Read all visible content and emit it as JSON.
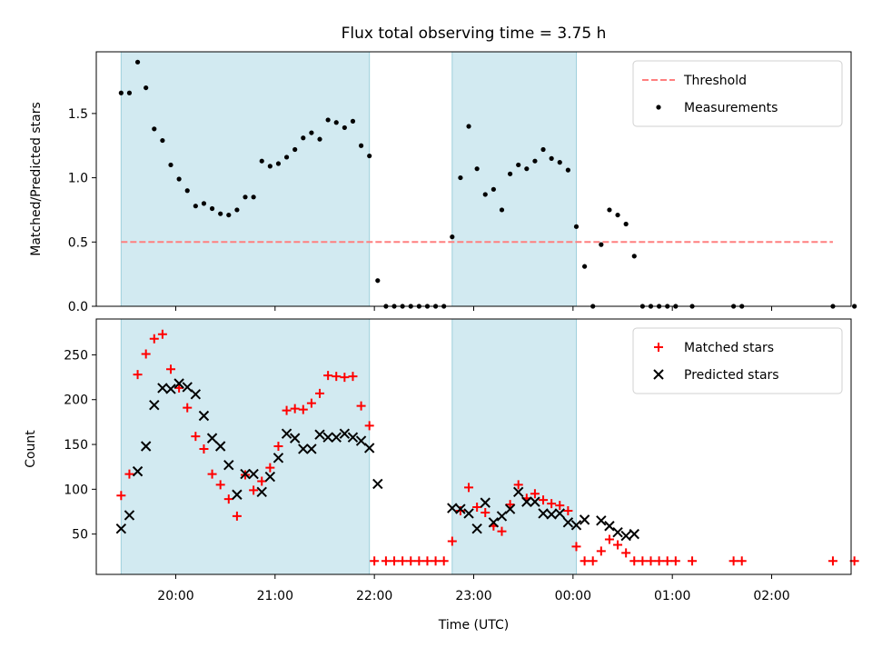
{
  "chart_data": [
    {
      "type": "scatter",
      "title": "Flux total observing time = 3.75 h",
      "xlabel": "",
      "ylabel": "Matched/Predicted stars",
      "xlim": [
        "19:12",
        "02:48"
      ],
      "ylim": [
        0,
        1.98
      ],
      "yticks": [
        0.0,
        0.5,
        1.0,
        1.5
      ],
      "ytick_labels": [
        "0.0",
        "0.5",
        "1.0",
        "1.5"
      ],
      "shaded_intervals": [
        [
          "19:27",
          "21:57"
        ],
        [
          "22:47",
          "00:02"
        ]
      ],
      "shade_color": "#add8e6",
      "legend_position": "top-right",
      "threshold": {
        "name": "Threshold",
        "value": 0.5,
        "x_range": [
          "19:27",
          "02:37"
        ],
        "color": "#ff7f7f"
      },
      "series": [
        {
          "name": "Measurements",
          "color": "#000000",
          "marker": "dot",
          "points": [
            [
              "19:27",
              1.66
            ],
            [
              "19:32",
              1.66
            ],
            [
              "19:37",
              1.9
            ],
            [
              "19:42",
              1.7
            ],
            [
              "19:47",
              1.38
            ],
            [
              "19:52",
              1.29
            ],
            [
              "19:57",
              1.1
            ],
            [
              "20:02",
              0.99
            ],
            [
              "20:07",
              0.9
            ],
            [
              "20:12",
              0.78
            ],
            [
              "20:17",
              0.8
            ],
            [
              "20:22",
              0.76
            ],
            [
              "20:27",
              0.72
            ],
            [
              "20:32",
              0.71
            ],
            [
              "20:37",
              0.75
            ],
            [
              "20:42",
              0.85
            ],
            [
              "20:47",
              0.85
            ],
            [
              "20:52",
              1.13
            ],
            [
              "20:57",
              1.09
            ],
            [
              "21:02",
              1.11
            ],
            [
              "21:07",
              1.16
            ],
            [
              "21:12",
              1.22
            ],
            [
              "21:17",
              1.31
            ],
            [
              "21:22",
              1.35
            ],
            [
              "21:27",
              1.3
            ],
            [
              "21:32",
              1.45
            ],
            [
              "21:37",
              1.43
            ],
            [
              "21:42",
              1.39
            ],
            [
              "21:47",
              1.44
            ],
            [
              "21:52",
              1.25
            ],
            [
              "21:57",
              1.17
            ],
            [
              "22:02",
              0.2
            ],
            [
              "22:07",
              0.0
            ],
            [
              "22:12",
              0.0
            ],
            [
              "22:17",
              0.0
            ],
            [
              "22:22",
              0.0
            ],
            [
              "22:27",
              0.0
            ],
            [
              "22:32",
              0.0
            ],
            [
              "22:37",
              0.0
            ],
            [
              "22:42",
              0.0
            ],
            [
              "22:47",
              0.54
            ],
            [
              "22:52",
              1.0
            ],
            [
              "22:57",
              1.4
            ],
            [
              "23:02",
              1.07
            ],
            [
              "23:07",
              0.87
            ],
            [
              "23:12",
              0.91
            ],
            [
              "23:17",
              0.75
            ],
            [
              "23:22",
              1.03
            ],
            [
              "23:27",
              1.1
            ],
            [
              "23:32",
              1.07
            ],
            [
              "23:37",
              1.13
            ],
            [
              "23:42",
              1.22
            ],
            [
              "23:47",
              1.15
            ],
            [
              "23:52",
              1.12
            ],
            [
              "23:57",
              1.06
            ],
            [
              "00:02",
              0.62
            ],
            [
              "00:07",
              0.31
            ],
            [
              "00:12",
              0.0
            ],
            [
              "00:17",
              0.48
            ],
            [
              "00:22",
              0.75
            ],
            [
              "00:27",
              0.71
            ],
            [
              "00:32",
              0.64
            ],
            [
              "00:37",
              0.39
            ],
            [
              "00:42",
              0.0
            ],
            [
              "00:47",
              0.0
            ],
            [
              "00:52",
              0.0
            ],
            [
              "00:57",
              0.0
            ],
            [
              "01:02",
              0.0
            ],
            [
              "01:12",
              0.0
            ],
            [
              "01:37",
              0.0
            ],
            [
              "01:42",
              0.0
            ],
            [
              "02:37",
              0.0
            ],
            [
              "02:50",
              0.0
            ]
          ]
        }
      ]
    },
    {
      "type": "scatter",
      "title": "",
      "xlabel": "Time (UTC)",
      "ylabel": "Count",
      "xlim": [
        "19:12",
        "02:48"
      ],
      "ylim": [
        5,
        290
      ],
      "xticks": [
        "20:00",
        "21:00",
        "22:00",
        "23:00",
        "00:00",
        "01:00",
        "02:00"
      ],
      "yticks": [
        50,
        100,
        150,
        200,
        250
      ],
      "ytick_labels": [
        "50",
        "100",
        "150",
        "200",
        "250"
      ],
      "shaded_intervals": [
        [
          "19:27",
          "21:57"
        ],
        [
          "22:47",
          "00:02"
        ]
      ],
      "shade_color": "#add8e6",
      "legend_position": "top-right",
      "series": [
        {
          "name": "Matched stars",
          "color": "#ff0000",
          "marker": "plus",
          "points": [
            [
              "19:27",
              93
            ],
            [
              "19:32",
              117
            ],
            [
              "19:37",
              228
            ],
            [
              "19:42",
              251
            ],
            [
              "19:47",
              268
            ],
            [
              "19:52",
              273
            ],
            [
              "19:57",
              234
            ],
            [
              "20:02",
              213
            ],
            [
              "20:07",
              191
            ],
            [
              "20:12",
              159
            ],
            [
              "20:17",
              145
            ],
            [
              "20:22",
              117
            ],
            [
              "20:27",
              105
            ],
            [
              "20:32",
              89
            ],
            [
              "20:37",
              70
            ],
            [
              "20:42",
              116
            ],
            [
              "20:47",
              99
            ],
            [
              "20:52",
              109
            ],
            [
              "20:57",
              124
            ],
            [
              "21:02",
              148
            ],
            [
              "21:07",
              188
            ],
            [
              "21:12",
              190
            ],
            [
              "21:17",
              189
            ],
            [
              "21:22",
              196
            ],
            [
              "21:27",
              207
            ],
            [
              "21:32",
              227
            ],
            [
              "21:37",
              226
            ],
            [
              "21:42",
              225
            ],
            [
              "21:47",
              226
            ],
            [
              "21:52",
              193
            ],
            [
              "21:57",
              171
            ],
            [
              "22:00",
              20
            ],
            [
              "22:07",
              20
            ],
            [
              "22:12",
              20
            ],
            [
              "22:17",
              20
            ],
            [
              "22:22",
              20
            ],
            [
              "22:27",
              20
            ],
            [
              "22:32",
              20
            ],
            [
              "22:37",
              20
            ],
            [
              "22:42",
              20
            ],
            [
              "22:47",
              42
            ],
            [
              "22:52",
              76
            ],
            [
              "22:57",
              102
            ],
            [
              "23:02",
              80
            ],
            [
              "23:07",
              74
            ],
            [
              "23:12",
              59
            ],
            [
              "23:17",
              53
            ],
            [
              "23:22",
              83
            ],
            [
              "23:27",
              105
            ],
            [
              "23:32",
              90
            ],
            [
              "23:37",
              95
            ],
            [
              "23:42",
              88
            ],
            [
              "23:47",
              84
            ],
            [
              "23:52",
              82
            ],
            [
              "23:57",
              76
            ],
            [
              "00:02",
              36
            ],
            [
              "00:07",
              20
            ],
            [
              "00:12",
              20
            ],
            [
              "00:17",
              31
            ],
            [
              "00:22",
              44
            ],
            [
              "00:27",
              38
            ],
            [
              "00:32",
              29
            ],
            [
              "00:37",
              20
            ],
            [
              "00:42",
              20
            ],
            [
              "00:47",
              20
            ],
            [
              "00:52",
              20
            ],
            [
              "00:57",
              20
            ],
            [
              "01:02",
              20
            ],
            [
              "01:12",
              20
            ],
            [
              "01:37",
              20
            ],
            [
              "01:42",
              20
            ],
            [
              "02:37",
              20
            ],
            [
              "02:50",
              20
            ]
          ]
        },
        {
          "name": "Predicted stars",
          "color": "#000000",
          "marker": "x",
          "points": [
            [
              "19:27",
              56
            ],
            [
              "19:32",
              71
            ],
            [
              "19:37",
              120
            ],
            [
              "19:42",
              148
            ],
            [
              "19:47",
              194
            ],
            [
              "19:52",
              213
            ],
            [
              "19:57",
              212
            ],
            [
              "20:02",
              218
            ],
            [
              "20:07",
              214
            ],
            [
              "20:12",
              206
            ],
            [
              "20:17",
              182
            ],
            [
              "20:22",
              157
            ],
            [
              "20:27",
              148
            ],
            [
              "20:32",
              127
            ],
            [
              "20:37",
              94
            ],
            [
              "20:42",
              117
            ],
            [
              "20:47",
              117
            ],
            [
              "20:52",
              97
            ],
            [
              "20:57",
              114
            ],
            [
              "21:02",
              135
            ],
            [
              "21:07",
              162
            ],
            [
              "21:12",
              157
            ],
            [
              "21:17",
              145
            ],
            [
              "21:22",
              145
            ],
            [
              "21:27",
              161
            ],
            [
              "21:32",
              158
            ],
            [
              "21:37",
              158
            ],
            [
              "21:42",
              162
            ],
            [
              "21:47",
              158
            ],
            [
              "21:52",
              154
            ],
            [
              "21:57",
              146
            ],
            [
              "22:02",
              106
            ],
            [
              "22:47",
              79
            ],
            [
              "22:52",
              78
            ],
            [
              "22:57",
              73
            ],
            [
              "23:02",
              56
            ],
            [
              "23:07",
              85
            ],
            [
              "23:12",
              63
            ],
            [
              "23:17",
              70
            ],
            [
              "23:22",
              78
            ],
            [
              "23:27",
              97
            ],
            [
              "23:32",
              86
            ],
            [
              "23:37",
              86
            ],
            [
              "23:42",
              73
            ],
            [
              "23:47",
              72
            ],
            [
              "23:52",
              73
            ],
            [
              "23:57",
              63
            ],
            [
              "00:02",
              60
            ],
            [
              "00:07",
              66
            ],
            [
              "00:17",
              65
            ],
            [
              "00:22",
              59
            ],
            [
              "00:27",
              52
            ],
            [
              "00:32",
              48
            ],
            [
              "00:37",
              50
            ]
          ]
        }
      ]
    }
  ]
}
